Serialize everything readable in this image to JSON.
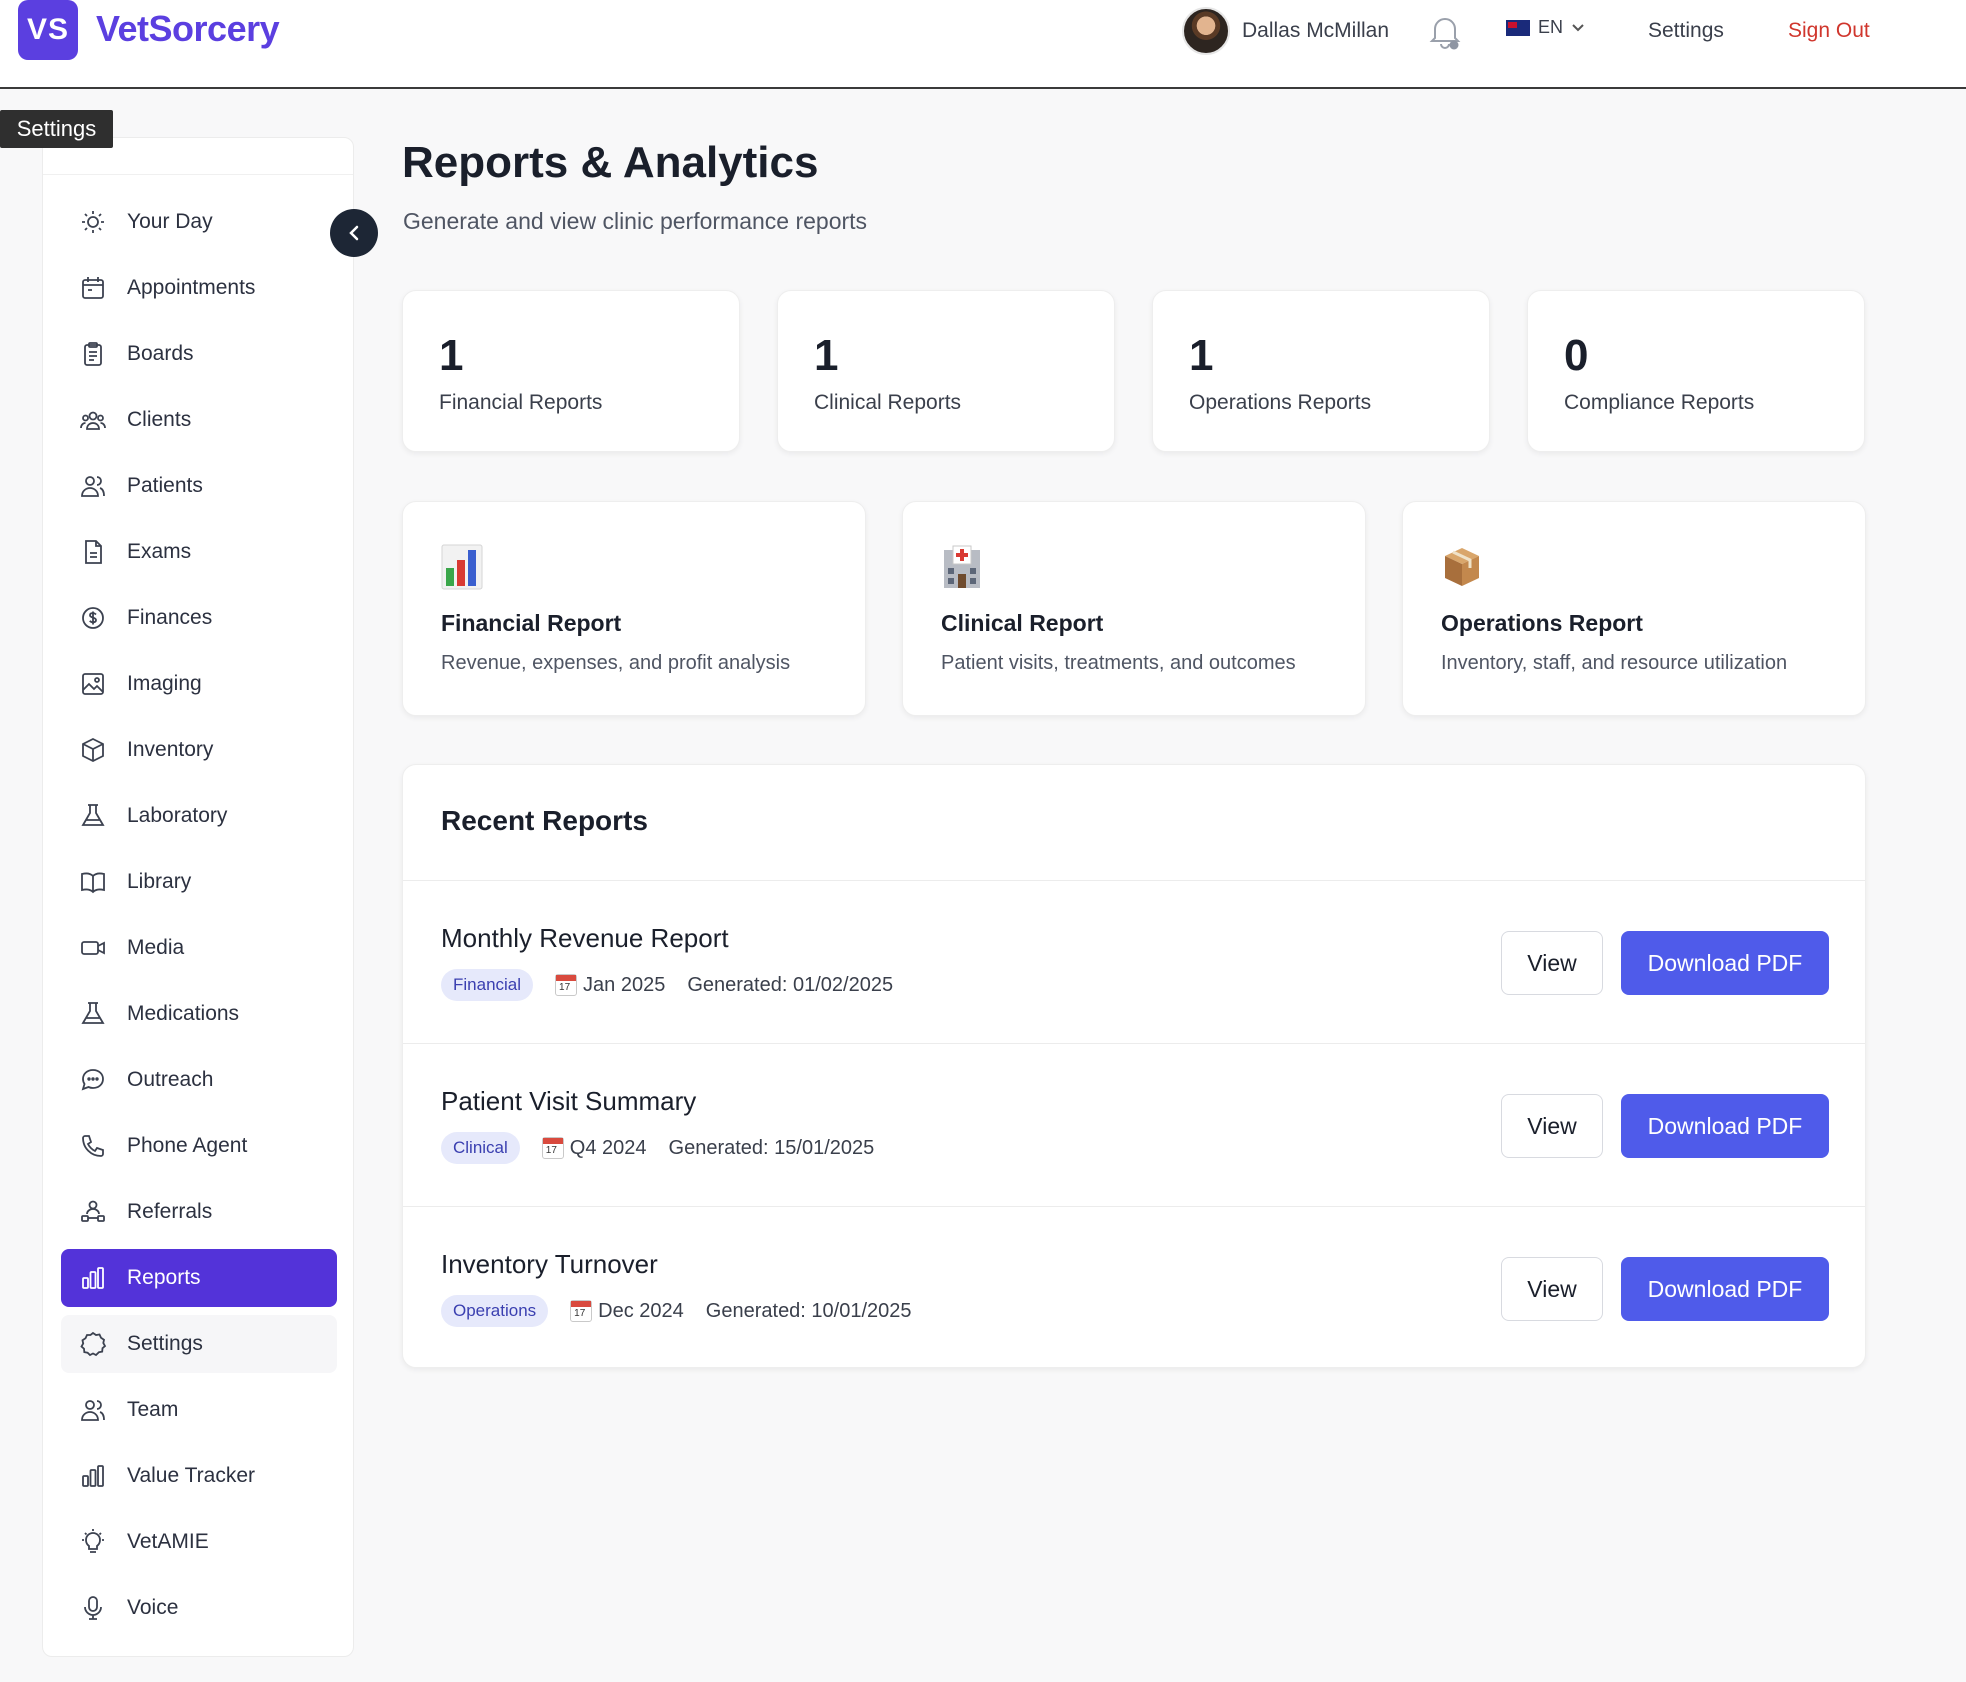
{
  "header": {
    "logo_badge": "VS",
    "logo_text": "VetSorcery",
    "user_name": "Dallas McMillan",
    "language": "EN",
    "settings_label": "Settings",
    "signout_label": "Sign Out"
  },
  "tooltip": "Settings",
  "sidebar": {
    "items": [
      {
        "label": "Your Day",
        "icon": "sun-icon"
      },
      {
        "label": "Appointments",
        "icon": "calendar-icon"
      },
      {
        "label": "Boards",
        "icon": "clipboard-icon"
      },
      {
        "label": "Clients",
        "icon": "users-icon"
      },
      {
        "label": "Patients",
        "icon": "user-group-icon"
      },
      {
        "label": "Exams",
        "icon": "document-icon"
      },
      {
        "label": "Finances",
        "icon": "dollar-icon"
      },
      {
        "label": "Imaging",
        "icon": "image-icon"
      },
      {
        "label": "Inventory",
        "icon": "cube-icon"
      },
      {
        "label": "Laboratory",
        "icon": "flask-icon"
      },
      {
        "label": "Library",
        "icon": "book-icon"
      },
      {
        "label": "Media",
        "icon": "video-icon"
      },
      {
        "label": "Medications",
        "icon": "flask-icon"
      },
      {
        "label": "Outreach",
        "icon": "chat-icon"
      },
      {
        "label": "Phone Agent",
        "icon": "phone-icon"
      },
      {
        "label": "Referrals",
        "icon": "referral-icon"
      },
      {
        "label": "Reports",
        "icon": "bar-chart-icon"
      },
      {
        "label": "Settings",
        "icon": "cog-icon"
      },
      {
        "label": "Team",
        "icon": "user-group-icon"
      },
      {
        "label": "Value Tracker",
        "icon": "bar-chart-icon"
      },
      {
        "label": "VetAMIE",
        "icon": "lightbulb-icon"
      },
      {
        "label": "Voice",
        "icon": "microphone-icon"
      }
    ],
    "active": "Reports"
  },
  "main": {
    "title": "Reports & Analytics",
    "subtitle": "Generate and view clinic performance reports",
    "stats": [
      {
        "value": "1",
        "label": "Financial Reports"
      },
      {
        "value": "1",
        "label": "Clinical Reports"
      },
      {
        "value": "1",
        "label": "Operations Reports"
      },
      {
        "value": "0",
        "label": "Compliance Reports"
      }
    ],
    "report_types": [
      {
        "icon": "bar-chart-emoji-icon",
        "title": "Financial Report",
        "desc": "Revenue, expenses, and profit analysis"
      },
      {
        "icon": "hospital-emoji-icon",
        "title": "Clinical Report",
        "desc": "Patient visits, treatments, and outcomes"
      },
      {
        "icon": "package-emoji-icon",
        "title": "Operations Report",
        "desc": "Inventory, staff, and resource utilization"
      }
    ],
    "recent": {
      "title": "Recent Reports",
      "view_label": "View",
      "download_label": "Download PDF",
      "rows": [
        {
          "name": "Monthly Revenue Report",
          "category": "Financial",
          "period": "Jan 2025",
          "generated": "Generated: 01/02/2025"
        },
        {
          "name": "Patient Visit Summary",
          "category": "Clinical",
          "period": "Q4 2024",
          "generated": "Generated: 15/01/2025"
        },
        {
          "name": "Inventory Turnover",
          "category": "Operations",
          "period": "Dec 2024",
          "generated": "Generated: 10/01/2025"
        }
      ]
    }
  },
  "colors": {
    "brand": "#5b3fe0",
    "active_nav": "#5333d9",
    "primary_button": "#4f5bea",
    "sign_out": "#d0362d"
  }
}
